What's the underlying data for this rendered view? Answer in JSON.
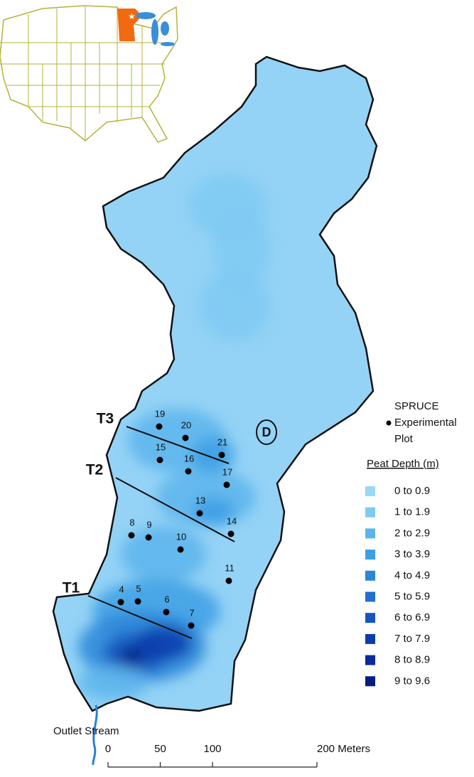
{
  "inset": {
    "state_color": "#f26a10",
    "lake_color": "#3a8fd8",
    "line_color": "#b5b23c"
  },
  "map": {
    "fill": "#94d3f6",
    "transects": [
      "T1",
      "T2",
      "T3"
    ],
    "plots": [
      "19",
      "20",
      "21",
      "15",
      "16",
      "17",
      "13",
      "14",
      "8",
      "9",
      "10",
      "11",
      "4",
      "5",
      "6",
      "7"
    ],
    "marker": "D",
    "stream_label": "Outlet Stream"
  },
  "plot_legend": {
    "lines": [
      "SPRUCE",
      "Experimental",
      "Plot"
    ]
  },
  "depth_legend": {
    "title": "Peat Depth (m)",
    "classes": [
      {
        "label": "0 to 0.9",
        "color": "#9ad8f7"
      },
      {
        "label": "1 to 1.9",
        "color": "#7fcaf2"
      },
      {
        "label": "2 to 2.9",
        "color": "#5cb4ec"
      },
      {
        "label": "3 to 3.9",
        "color": "#3d9fe4"
      },
      {
        "label": "4 to 4.9",
        "color": "#2b86d8"
      },
      {
        "label": "5 to 5.9",
        "color": "#2070cc"
      },
      {
        "label": "6 to 6.9",
        "color": "#1655bd"
      },
      {
        "label": "7 to 7.9",
        "color": "#0d3cab"
      },
      {
        "label": "8 to 8.9",
        "color": "#0a2b9c"
      },
      {
        "label": "9 to 9.6",
        "color": "#041d80"
      }
    ]
  },
  "scale_bar": {
    "ticks": [
      0,
      50,
      100,
      {
        "value": 200,
        "label": "200 Meters"
      }
    ]
  }
}
